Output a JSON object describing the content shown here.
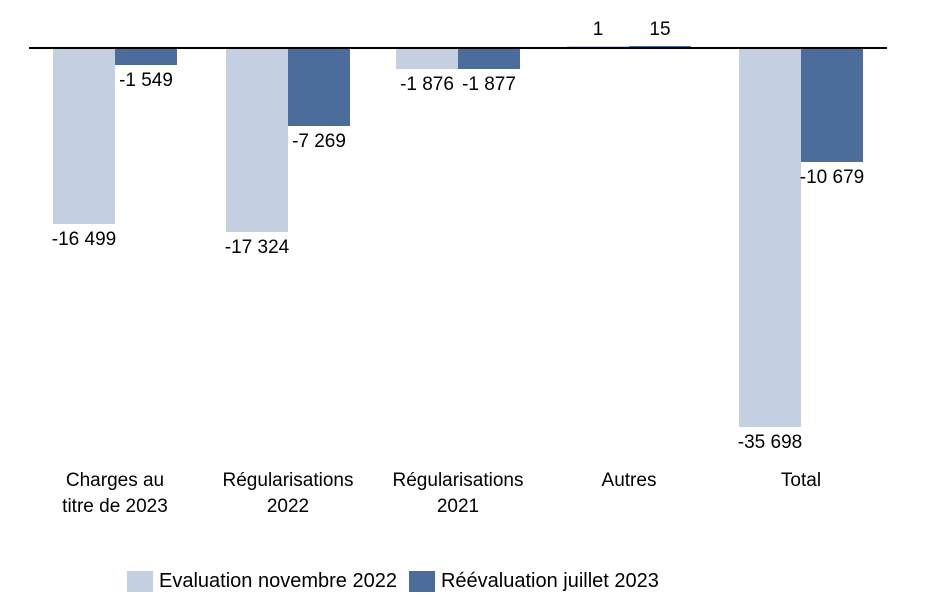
{
  "chart_data": {
    "type": "bar",
    "title": "",
    "xlabel": "",
    "ylabel": "",
    "categories": [
      "Charges au titre de 2023",
      "Régularisations 2022",
      "Régularisations 2021",
      "Autres",
      "Total"
    ],
    "category_lines": [
      [
        "Charges au",
        "titre de 2023"
      ],
      [
        "Régularisations",
        "2022"
      ],
      [
        "Régularisations",
        "2021"
      ],
      [
        "Autres"
      ],
      [
        "Total"
      ]
    ],
    "series": [
      {
        "name": "Evaluation novembre 2022",
        "color": "#c5cfe2",
        "values": [
          -16499,
          -17324,
          -1876,
          1,
          -35698
        ],
        "labels": [
          "-16 499",
          "-17 324",
          "-1 876",
          "1",
          "-35 698"
        ]
      },
      {
        "name": "Réévaluation juillet 2023",
        "color": "#4c6c9c",
        "values": [
          -1549,
          -7269,
          -1877,
          15,
          -10679
        ],
        "labels": [
          "-1 549",
          "-7 269",
          "-1 877",
          "15",
          "-10 679"
        ]
      }
    ],
    "ylim": [
      -35698,
      15
    ],
    "baseline_value": 0,
    "grid": false,
    "legend_position": "bottom"
  },
  "colors": {
    "axis": "#000000",
    "text": "#000000",
    "background": "#ffffff"
  }
}
